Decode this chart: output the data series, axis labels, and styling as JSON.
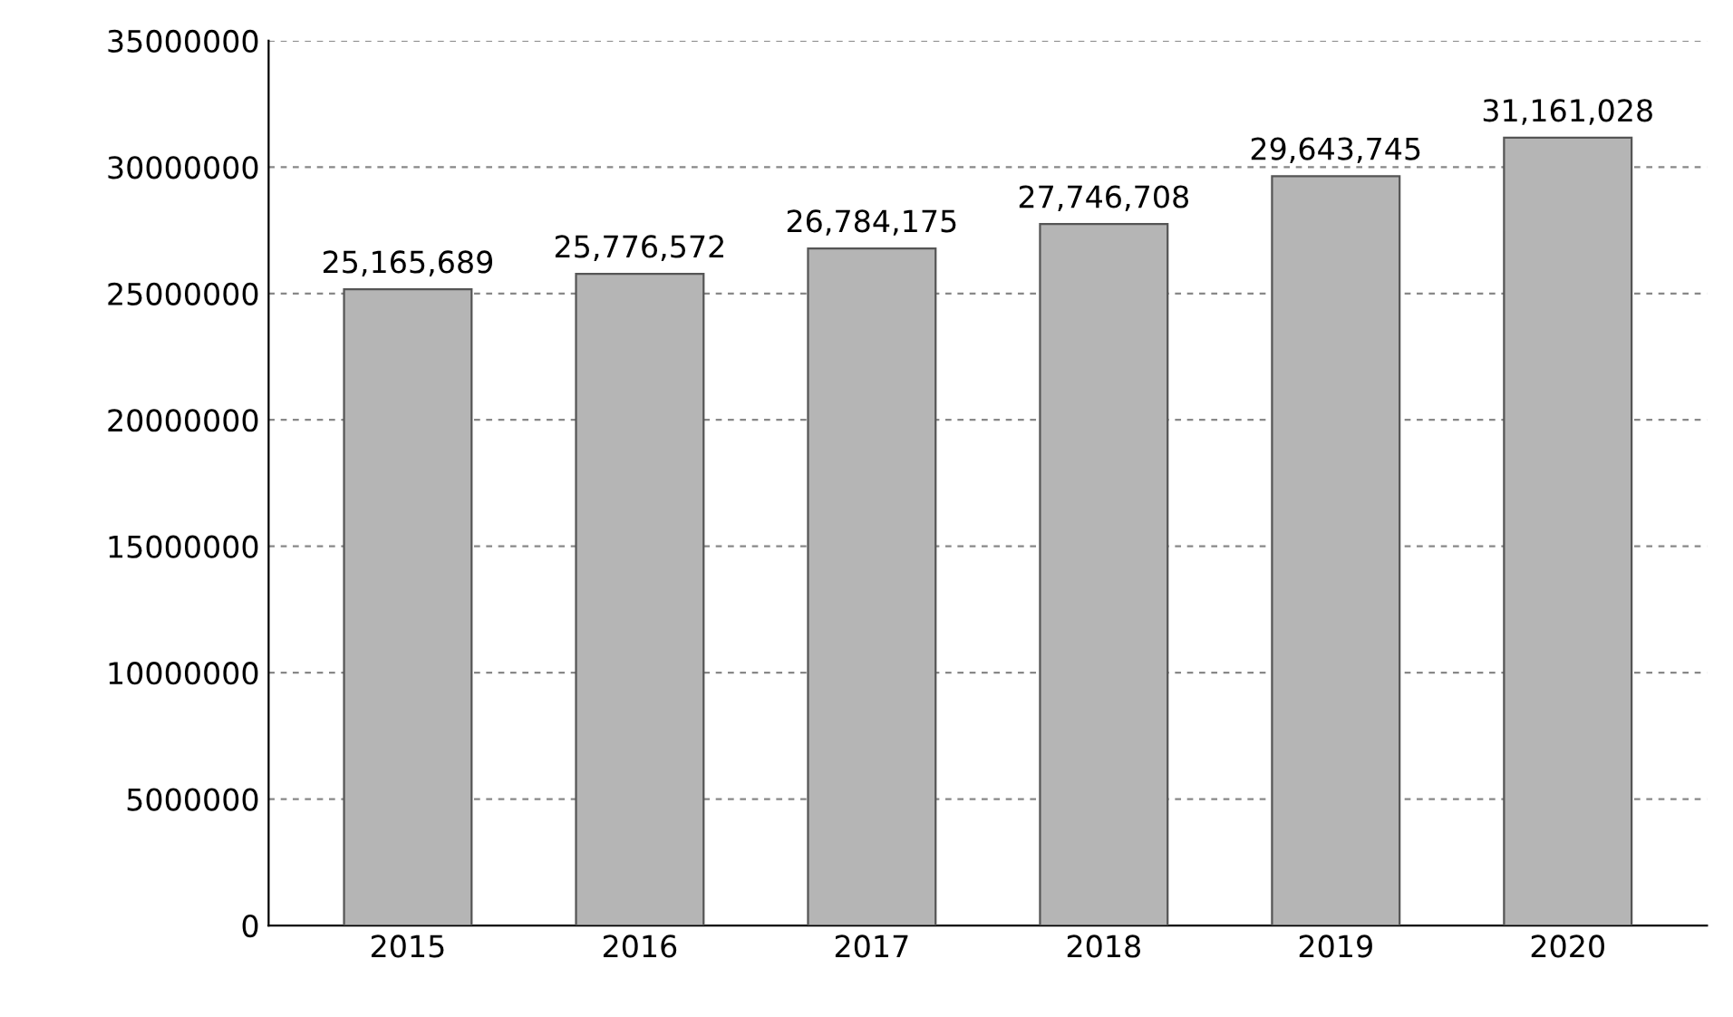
{
  "chart_data": {
    "type": "bar",
    "categories": [
      "2015",
      "2016",
      "2017",
      "2018",
      "2019",
      "2020"
    ],
    "values": [
      25165689,
      25776572,
      26784175,
      27746708,
      29643745,
      31161028
    ],
    "value_labels": [
      "25,165,689",
      "25,776,572",
      "26,784,175",
      "27,746,708",
      "29,643,745",
      "31,161,028"
    ],
    "color": "#b5b5b5",
    "ylim": [
      0,
      35000000
    ],
    "yticks": [
      0,
      5000000,
      10000000,
      15000000,
      20000000,
      25000000,
      30000000,
      35000000
    ],
    "grid": "y"
  }
}
